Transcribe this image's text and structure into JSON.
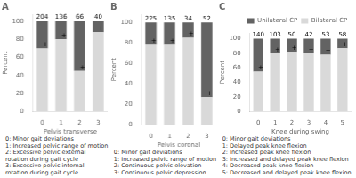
{
  "chart_data": [
    {
      "type": "bar",
      "title": "A",
      "stacked": true,
      "grid": false,
      "xlabel": "Pelvis transverse",
      "ylabel": "Percent",
      "categories": [
        "0",
        "1",
        "2",
        "3"
      ],
      "series": [
        {
          "name": "Bilateral CP",
          "color": "#d9d9d9",
          "values": [
            70,
            80,
            45,
            88
          ]
        },
        {
          "name": "Unilateral CP",
          "color": "#636363",
          "values": [
            30,
            20,
            55,
            12
          ]
        }
      ],
      "counts": [
        204,
        136,
        66,
        40
      ],
      "ylim": [
        0,
        108
      ],
      "yticks": [
        0,
        20,
        40,
        60,
        80,
        100
      ],
      "annotations": [
        {
          "text": "+",
          "x": "0",
          "y": 70
        },
        {
          "text": "+",
          "x": "1",
          "y": 80
        },
        {
          "text": "+",
          "x": "2",
          "y": 45
        },
        {
          "text": "+",
          "x": "3",
          "y": 88
        },
        {
          "text": "0: Minor gait deviations"
        },
        {
          "text": "1: Increased pelvic range of motion"
        },
        {
          "text": "2: Excessive pelvic external rotation during gait cycle"
        },
        {
          "text": "3: Excessive pelvic internal rotation during gait cycle"
        }
      ]
    },
    {
      "type": "bar",
      "title": "B",
      "stacked": true,
      "grid": false,
      "xlabel": "Pelvis coronal",
      "ylabel": "Percent",
      "categories": [
        "0",
        "1",
        "2",
        "3"
      ],
      "series": [
        {
          "name": "Bilateral CP",
          "color": "#d9d9d9",
          "values": [
            78,
            78,
            85,
            27
          ]
        },
        {
          "name": "Unilateral CP",
          "color": "#636363",
          "values": [
            22,
            22,
            15,
            73
          ]
        }
      ],
      "counts": [
        225,
        135,
        34,
        52
      ],
      "ylim": [
        0,
        108
      ],
      "yticks": [
        0,
        20,
        40,
        60,
        80,
        100
      ],
      "annotations": [
        {
          "text": "+",
          "x": "0",
          "y": 78
        },
        {
          "text": "+",
          "x": "1",
          "y": 78
        },
        {
          "text": "+",
          "x": "2",
          "y": 85
        },
        {
          "text": "+",
          "x": "3",
          "y": 27
        },
        {
          "text": "0: Minor gait deviations"
        },
        {
          "text": "1: Increased pelvic range of motion"
        },
        {
          "text": "2: Continuous pelvic elevation"
        },
        {
          "text": "3: Continuous pelvic depression"
        }
      ]
    },
    {
      "type": "bar",
      "title": "C",
      "stacked": true,
      "grid": false,
      "legend": "upper right",
      "xlabel": "Knee during swing",
      "ylabel": "Percent",
      "categories": [
        "0",
        "1",
        "2",
        "3",
        "4",
        "5"
      ],
      "series": [
        {
          "name": "Bilateral CP",
          "color": "#d9d9d9",
          "values": [
            55,
            80,
            82,
            80,
            78,
            87
          ]
        },
        {
          "name": "Unilateral CP",
          "color": "#636363",
          "values": [
            45,
            20,
            18,
            20,
            22,
            13
          ]
        }
      ],
      "counts": [
        140,
        103,
        50,
        42,
        53,
        58
      ],
      "ylim": [
        0,
        108
      ],
      "yticks": [
        0,
        20,
        40,
        60,
        80,
        100
      ],
      "annotations": [
        {
          "text": "+",
          "x": "0",
          "y": 55
        },
        {
          "text": "+",
          "x": "1",
          "y": 80
        },
        {
          "text": "+",
          "x": "2",
          "y": 82
        },
        {
          "text": "+",
          "x": "3",
          "y": 80
        },
        {
          "text": "+",
          "x": "4",
          "y": 78
        },
        {
          "text": "+",
          "x": "5",
          "y": 87
        },
        {
          "text": "0: Minor gait deviations"
        },
        {
          "text": "1: Delayed peak knee flexion"
        },
        {
          "text": "2: Increased peak knee flexion"
        },
        {
          "text": "3: Increased and delayed peak knee flexion"
        },
        {
          "text": "4: Decreased peak knee flexion"
        },
        {
          "text": "5: Decreased and delayed peak knee flexion"
        }
      ]
    }
  ]
}
